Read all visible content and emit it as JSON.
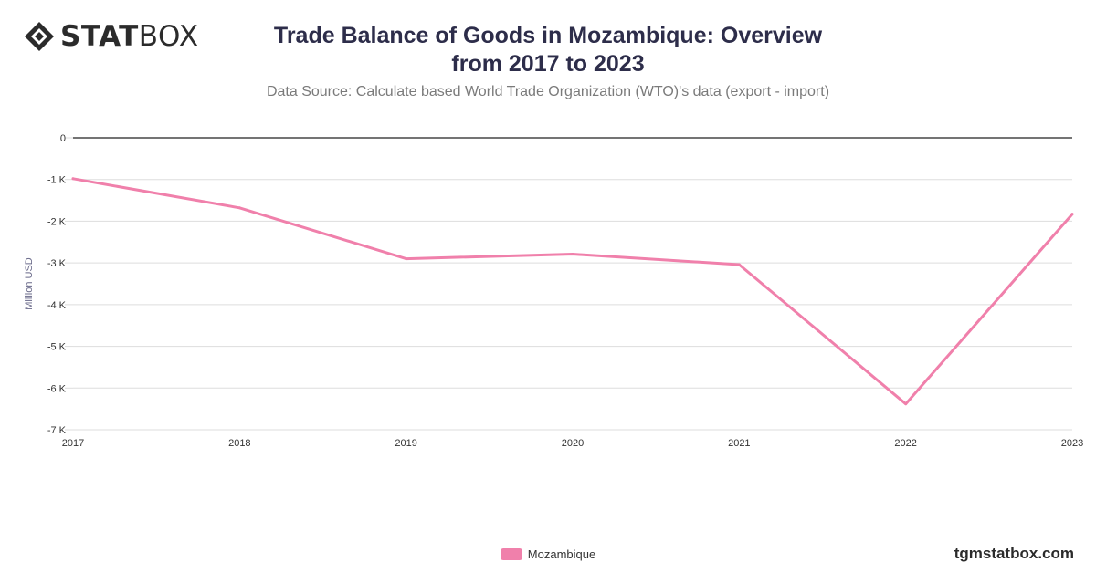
{
  "brand": {
    "bold": "STAT",
    "light": "BOX"
  },
  "header": {
    "title": "Trade Balance of Goods in Mozambique: Overview from 2017 to 2023",
    "subtitle": "Data Source: Calculate based World Trade Organization (WTO)'s data (export - import)"
  },
  "footer": {
    "site": "tgmstatbox.com"
  },
  "colors": {
    "series": "#f080ab",
    "axis": "#222222",
    "grid": "#dddddd",
    "text": "#333333"
  },
  "chart_data": {
    "type": "line",
    "title": "Trade Balance of Goods in Mozambique: Overview from 2017 to 2023",
    "subtitle": "Data Source: Calculate based World Trade Organization (WTO)'s data (export - import)",
    "xlabel": "",
    "ylabel": "Million USD",
    "x": [
      "2017",
      "2018",
      "2019",
      "2020",
      "2021",
      "2022",
      "2023"
    ],
    "series": [
      {
        "name": "Mozambique",
        "values": [
          -980,
          -1680,
          -2900,
          -2790,
          -3040,
          -6380,
          -1830
        ]
      }
    ],
    "ylim": [
      -7000,
      0
    ],
    "yticks": [
      {
        "value": 0,
        "label": "0"
      },
      {
        "value": -1000,
        "label": "-1 K"
      },
      {
        "value": -2000,
        "label": "-2 K"
      },
      {
        "value": -3000,
        "label": "-3 K"
      },
      {
        "value": -4000,
        "label": "-4 K"
      },
      {
        "value": -5000,
        "label": "-5 K"
      },
      {
        "value": -6000,
        "label": "-6 K"
      },
      {
        "value": -7000,
        "label": "-7 K"
      }
    ],
    "grid": true,
    "legend": "bottom-center"
  }
}
